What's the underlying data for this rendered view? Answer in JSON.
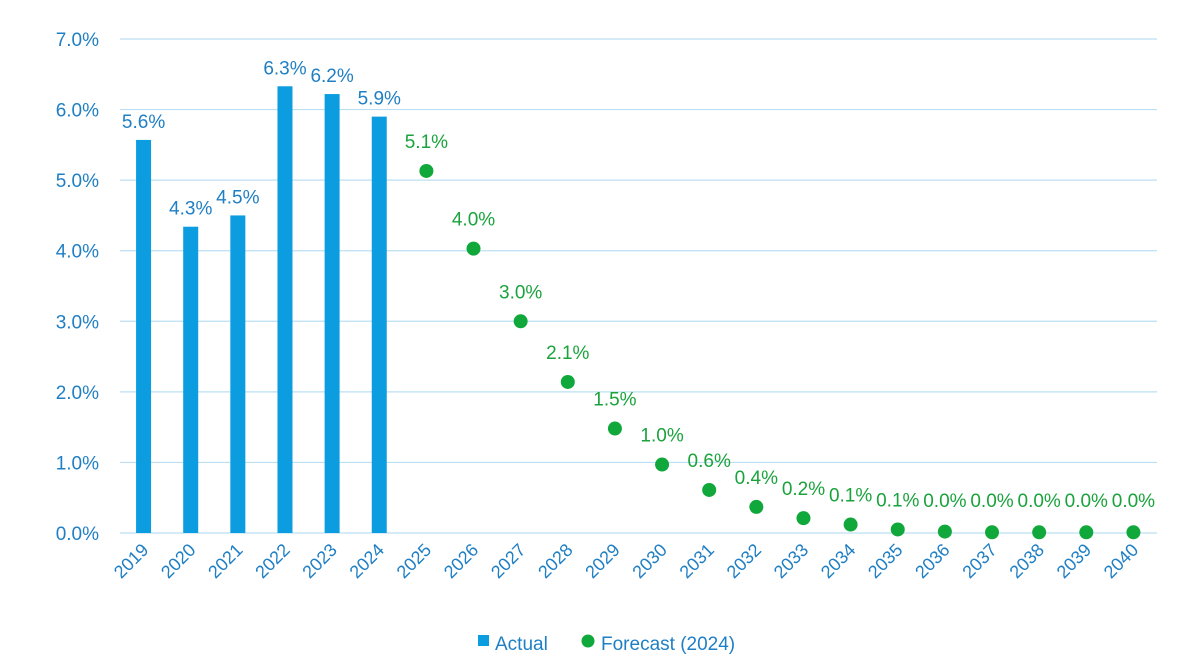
{
  "chart_data": {
    "type": "bar",
    "categories": [
      "2019",
      "2020",
      "2021",
      "2022",
      "2023",
      "2024",
      "2025",
      "2026",
      "2027",
      "2028",
      "2029",
      "2030",
      "2031",
      "2032",
      "2033",
      "2034",
      "2035",
      "2036",
      "2037",
      "2038",
      "2039",
      "2040"
    ],
    "series": [
      {
        "name": "Actual",
        "type": "bar",
        "color": "#0b9de0",
        "label_color": "#1f7fc4",
        "values": [
          5.57,
          4.34,
          4.5,
          6.33,
          6.22,
          5.9,
          null,
          null,
          null,
          null,
          null,
          null,
          null,
          null,
          null,
          null,
          null,
          null,
          null,
          null,
          null,
          null
        ],
        "labels": [
          "5.6%",
          "4.3%",
          "4.5%",
          "6.3%",
          "6.2%",
          "5.9%",
          null,
          null,
          null,
          null,
          null,
          null,
          null,
          null,
          null,
          null,
          null,
          null,
          null,
          null,
          null,
          null
        ]
      },
      {
        "name": "Forecast (2024)",
        "type": "scatter",
        "color": "#10a83b",
        "label_color": "#1aa33c",
        "values": [
          null,
          null,
          null,
          null,
          null,
          null,
          5.13,
          4.03,
          3.0,
          2.14,
          1.48,
          0.97,
          0.61,
          0.37,
          0.21,
          0.12,
          0.05,
          0.02,
          0.01,
          0.01,
          0.01,
          0.01
        ],
        "labels": [
          null,
          null,
          null,
          null,
          null,
          null,
          "5.1%",
          "4.0%",
          "3.0%",
          "2.1%",
          "1.5%",
          "1.0%",
          "0.6%",
          "0.4%",
          "0.2%",
          "0.1%",
          "0.1%",
          "0.0%",
          "0.0%",
          "0.0%",
          "0.0%",
          "0.0%"
        ]
      }
    ],
    "ylim": [
      0,
      7
    ],
    "yticks": [
      0,
      1,
      2,
      3,
      4,
      5,
      6,
      7
    ],
    "ytick_labels": [
      "0.0%",
      "1.0%",
      "2.0%",
      "3.0%",
      "4.0%",
      "5.0%",
      "6.0%",
      "7.0%"
    ],
    "title": "",
    "xlabel": "",
    "ylabel": "",
    "grid": true,
    "legend_position": "bottom-center",
    "colors": {
      "axis_text": "#1f7fc4",
      "gridline": "#bcdff3"
    }
  }
}
